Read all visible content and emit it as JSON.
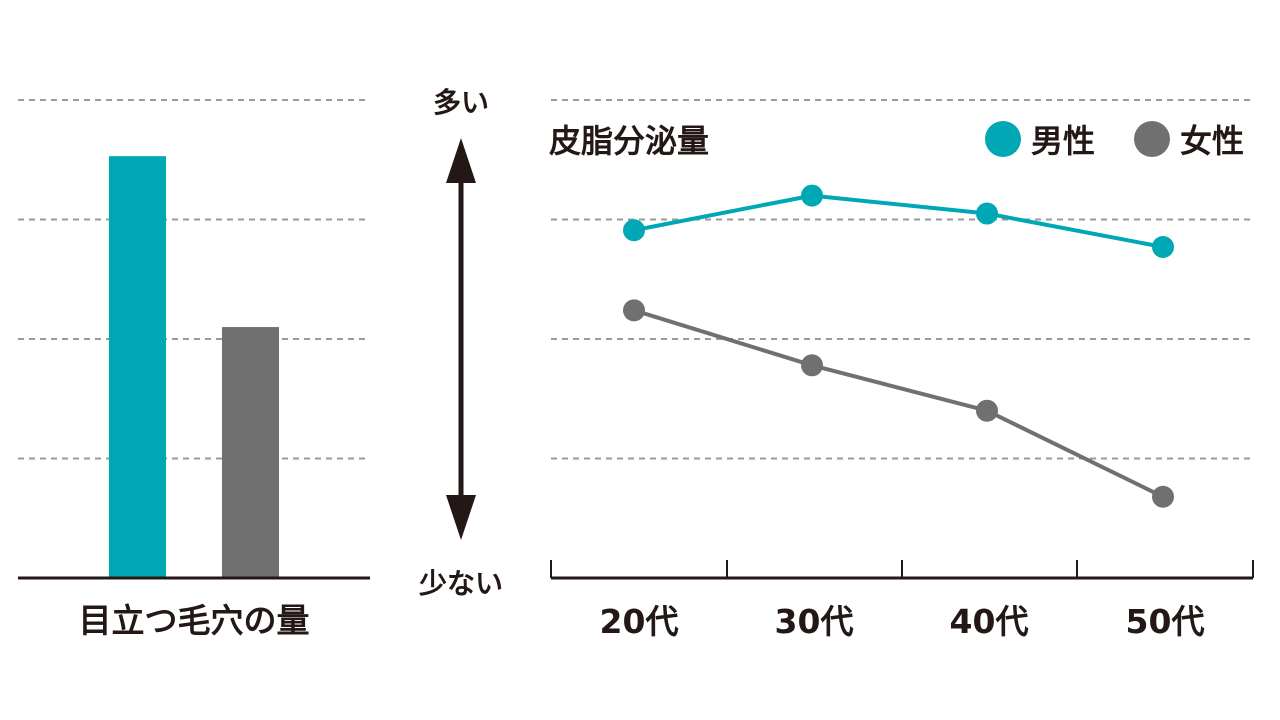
{
  "colors": {
    "male": "#00a8b5",
    "female": "#717071",
    "axis": "#231815",
    "grid": "#9a9a9a"
  },
  "axis_labels": {
    "top": "多い",
    "bottom": "少ない"
  },
  "chart_data": [
    {
      "type": "bar",
      "categories": [
        "男性",
        "女性"
      ],
      "values": [
        3.53,
        2.1
      ],
      "xlabel": "目立つ毛穴の量",
      "ylim": [
        0,
        4
      ],
      "grid": true,
      "grid_style": "dashed",
      "colors": [
        "#00a8b5",
        "#717071"
      ]
    },
    {
      "type": "line",
      "title": "皮脂分泌量",
      "categories": [
        "20代",
        "30代",
        "40代",
        "50代"
      ],
      "series": [
        {
          "name": "男性",
          "values": [
            2.91,
            3.2,
            3.05,
            2.77
          ],
          "color": "#00a8b5"
        },
        {
          "name": "女性",
          "values": [
            2.24,
            1.78,
            1.4,
            0.68
          ],
          "color": "#717071"
        }
      ],
      "ylim": [
        0,
        4
      ],
      "grid": true,
      "grid_style": "dashed",
      "legend": "top-right"
    }
  ]
}
